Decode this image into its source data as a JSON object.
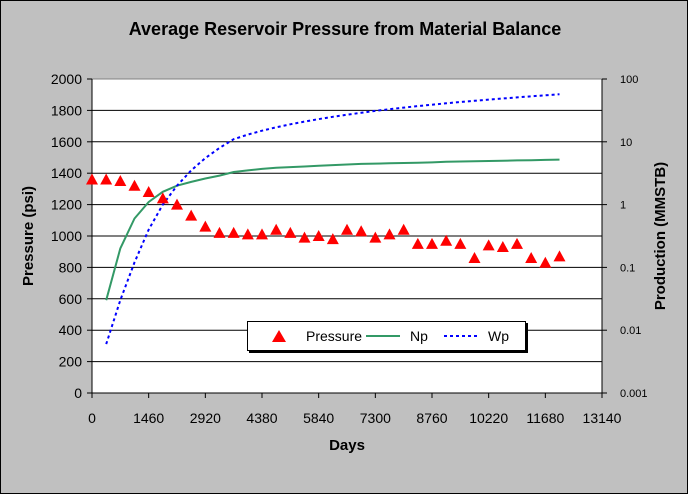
{
  "chart_data": {
    "type": "scatter",
    "title": "Average Reservoir Pressure from Material Balance",
    "xlabel": "Days",
    "ylabel": "Pressure (psi)",
    "y2label": "Production (MMSTB)",
    "xlim": [
      0,
      13140
    ],
    "xticks": [
      "0",
      "1460",
      "2920",
      "4380",
      "5840",
      "7300",
      "8760",
      "10220",
      "11680",
      "13140"
    ],
    "ylim": [
      0,
      2000
    ],
    "yticks": [
      "0",
      "200",
      "400",
      "600",
      "800",
      "1000",
      "1200",
      "1400",
      "1600",
      "1800",
      "2000"
    ],
    "y2lim": [
      0.001,
      100
    ],
    "y2scale": "log",
    "y2ticks": [
      "0.001",
      "0.01",
      "0.1",
      "1",
      "10",
      "100"
    ],
    "grid": "horizontal",
    "legend_position": "bottom-center",
    "series": [
      {
        "name": "Pressure",
        "axis": "left",
        "marker": "triangle",
        "color": "#ff0000",
        "x": [
          0,
          365,
          730,
          1095,
          1460,
          1825,
          2190,
          2555,
          2920,
          3285,
          3650,
          4015,
          4380,
          4745,
          5110,
          5475,
          5840,
          6205,
          6570,
          6935,
          7300,
          7665,
          8030,
          8395,
          8760,
          9125,
          9490,
          9855,
          10220,
          10585,
          10950,
          11315,
          11680,
          12045
        ],
        "values": [
          1360,
          1360,
          1350,
          1320,
          1280,
          1240,
          1200,
          1130,
          1060,
          1020,
          1020,
          1010,
          1010,
          1040,
          1020,
          990,
          1000,
          980,
          1040,
          1030,
          990,
          1010,
          1040,
          950,
          950,
          970,
          950,
          860,
          940,
          930,
          950,
          860,
          830,
          870
        ]
      },
      {
        "name": "Np",
        "axis": "right",
        "line": "solid",
        "color": "#339966",
        "x": [
          365,
          730,
          1095,
          1460,
          1825,
          2190,
          2555,
          2920,
          3285,
          3650,
          4015,
          4380,
          4745,
          5110,
          5475,
          5840,
          6205,
          6570,
          6935,
          7300,
          7665,
          8030,
          8395,
          8760,
          9125,
          9490,
          9855,
          10220,
          10585,
          10950,
          11315,
          11680,
          12045
        ],
        "values": [
          0.03,
          0.2,
          0.6,
          1.1,
          1.6,
          2.0,
          2.3,
          2.6,
          2.9,
          3.3,
          3.5,
          3.7,
          3.85,
          3.95,
          4.05,
          4.15,
          4.25,
          4.35,
          4.45,
          4.5,
          4.55,
          4.6,
          4.65,
          4.7,
          4.8,
          4.85,
          4.9,
          4.95,
          5.0,
          5.05,
          5.1,
          5.15,
          5.2
        ]
      },
      {
        "name": "Wp",
        "axis": "right",
        "line": "dotted",
        "color": "#0000ff",
        "x": [
          365,
          730,
          1095,
          1460,
          1825,
          2190,
          2555,
          2920,
          3285,
          3650,
          4015,
          4380,
          4745,
          5110,
          5475,
          5840,
          6205,
          6570,
          6935,
          7300,
          7665,
          8030,
          8395,
          8760,
          9125,
          9490,
          9855,
          10220,
          10585,
          10950,
          11315,
          11680,
          12045
        ],
        "values": [
          0.006,
          0.03,
          0.12,
          0.4,
          1.0,
          2.0,
          3.5,
          5.5,
          8.0,
          11,
          13,
          15,
          17,
          19,
          21,
          23,
          25,
          27,
          29,
          31,
          33,
          35,
          37,
          39,
          41,
          43,
          45,
          47,
          49,
          51,
          53,
          55,
          57
        ]
      }
    ]
  }
}
